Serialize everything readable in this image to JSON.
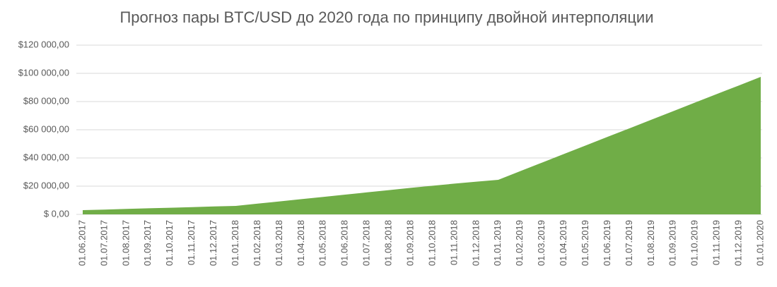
{
  "chart_data": {
    "type": "area",
    "title": "Прогноз пары BTC/USD до 2020 года по принципу двойной интерполяции",
    "categories": [
      "01.06.2017",
      "01.07.2017",
      "01.08.2017",
      "01.09.2017",
      "01.10.2017",
      "01.11.2017",
      "01.12.2017",
      "01.01.2018",
      "01.02.2018",
      "01.03.2018",
      "01.04.2018",
      "01.05.2018",
      "01.06.2018",
      "01.07.2018",
      "01.08.2018",
      "01.09.2018",
      "01.10.2018",
      "01.11.2018",
      "01.12.2018",
      "01.01.2019",
      "01.02.2019",
      "01.03.2019",
      "01.04.2019",
      "01.05.2019",
      "01.06.2019",
      "01.07.2019",
      "01.08.2019",
      "01.09.2019",
      "01.10.2019",
      "01.11.2019",
      "01.12.2019",
      "01.01.2020"
    ],
    "values": [
      3000,
      3400,
      3900,
      4300,
      4700,
      5100,
      5600,
      6000,
      7600,
      9200,
      10800,
      12400,
      14000,
      15600,
      17200,
      18800,
      20300,
      21800,
      23200,
      24500,
      30600,
      36700,
      42800,
      48900,
      55000,
      61000,
      67100,
      73200,
      79300,
      85400,
      91400,
      97500
    ],
    "color": "#70ad47",
    "ylim": [
      0,
      120000
    ],
    "yticks": [
      {
        "value": 0,
        "label": "$ 0,00"
      },
      {
        "value": 20000,
        "label": "$20 000,00"
      },
      {
        "value": 40000,
        "label": "$40 000,00"
      },
      {
        "value": 60000,
        "label": "$60 000,00"
      },
      {
        "value": 80000,
        "label": "$80 000,00"
      },
      {
        "value": 100000,
        "label": "$100 000,00"
      },
      {
        "value": 120000,
        "label": "$120 000,00"
      }
    ],
    "grid": true
  }
}
